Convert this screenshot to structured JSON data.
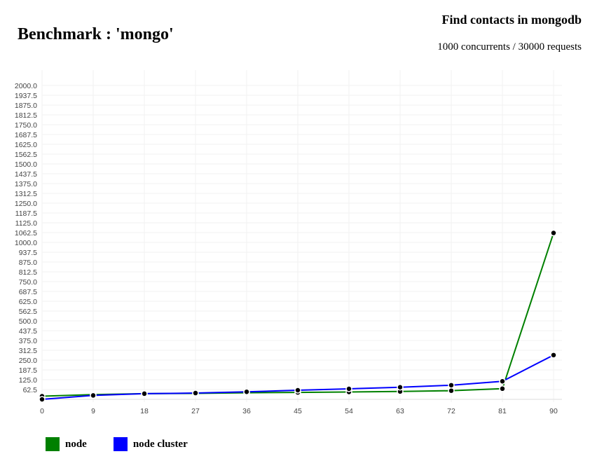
{
  "header": {
    "title": "Benchmark : 'mongo'",
    "subtitle": "Find contacts in mongodb",
    "detail": "1000 concurrents / 30000 requests"
  },
  "chart_data": {
    "type": "line",
    "title": "Benchmark : 'mongo'",
    "x": [
      0,
      9,
      18,
      27,
      36,
      45,
      54,
      63,
      72,
      81,
      90
    ],
    "x_ticks": [
      "0",
      "9",
      "18",
      "27",
      "36",
      "45",
      "54",
      "63",
      "72",
      "81",
      "90"
    ],
    "y_ticks": [
      "62.5",
      "125.0",
      "187.5",
      "250.0",
      "312.5",
      "375.0",
      "437.5",
      "500.0",
      "562.5",
      "625.0",
      "687.5",
      "750.0",
      "812.5",
      "875.0",
      "937.5",
      "1000.0",
      "1062.5",
      "1125.0",
      "1187.5",
      "1250.0",
      "1312.5",
      "1375.0",
      "1437.5",
      "1500.0",
      "1562.5",
      "1625.0",
      "1687.5",
      "1750.0",
      "1812.5",
      "1875.0",
      "1937.5",
      "2000.0"
    ],
    "xlim": [
      0,
      90
    ],
    "ylim": [
      0,
      2000
    ],
    "grid": true,
    "legend_position": "bottom-left",
    "series": [
      {
        "name": "node",
        "color": "#008000",
        "values": [
          20,
          30,
          36,
          38,
          42,
          44,
          47,
          50,
          55,
          68,
          1060
        ]
      },
      {
        "name": "node cluster",
        "color": "#0000ff",
        "values": [
          0,
          25,
          36,
          40,
          48,
          58,
          67,
          77,
          90,
          115,
          282
        ]
      }
    ]
  }
}
